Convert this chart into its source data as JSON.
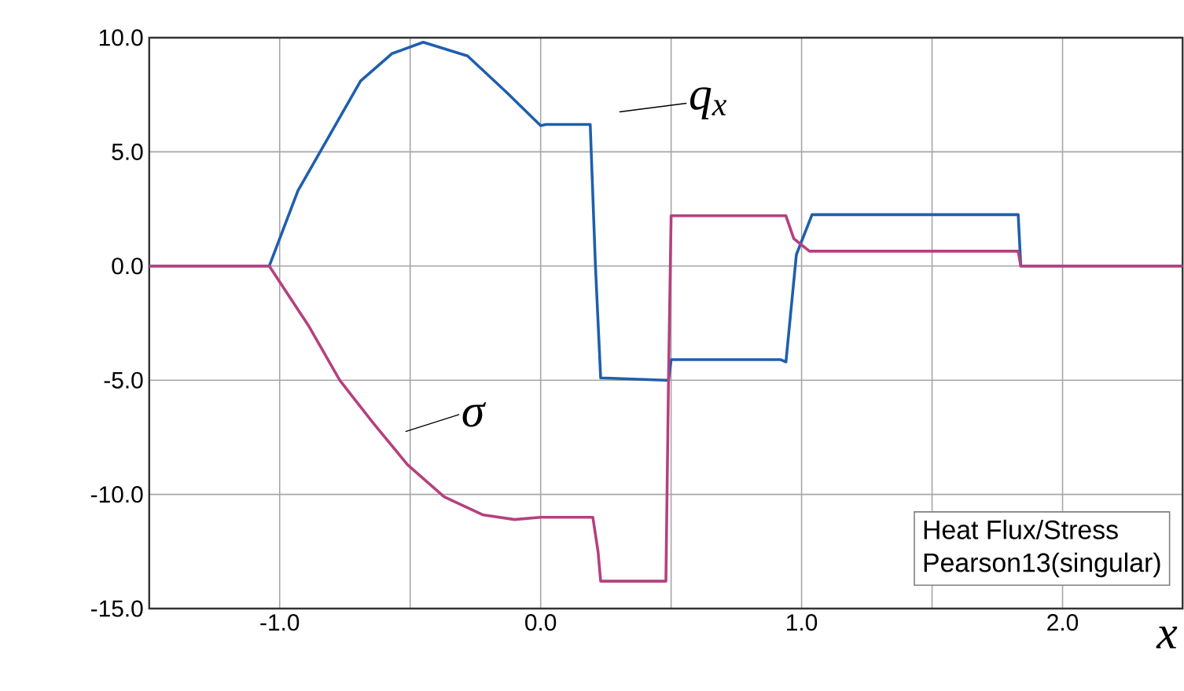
{
  "chart_data": {
    "type": "line",
    "xlabel": "x",
    "xlim": [
      -1.5,
      2.46
    ],
    "ylim": [
      -15,
      10
    ],
    "xticks": [
      {
        "value": -1.0,
        "label": "-1.0"
      },
      {
        "value": -0.5,
        "label": null
      },
      {
        "value": 0.0,
        "label": "0.0"
      },
      {
        "value": 0.5,
        "label": null
      },
      {
        "value": 1.0,
        "label": "1.0"
      },
      {
        "value": 1.5,
        "label": null
      },
      {
        "value": 2.0,
        "label": "2.0"
      }
    ],
    "yticks": [
      {
        "value": -15,
        "label": "-15.0"
      },
      {
        "value": -10,
        "label": "-10.0"
      },
      {
        "value": -5,
        "label": "-5.0"
      },
      {
        "value": 0,
        "label": "0.0"
      },
      {
        "value": 5,
        "label": "5.0"
      },
      {
        "value": 10,
        "label": "10.0"
      }
    ],
    "grid": true,
    "marker": "none",
    "line_style": "solid",
    "series": [
      {
        "color": "#1f5fad",
        "x": [
          -1.5,
          -1.04,
          -0.93,
          -0.83,
          -0.69,
          -0.57,
          -0.45,
          -0.28,
          -0.13,
          0.0,
          0.02,
          0.19,
          0.21,
          0.23,
          0.48,
          0.49,
          0.5,
          0.92,
          0.94,
          0.98,
          1.04,
          1.83,
          1.84,
          2.46
        ],
        "values": [
          0,
          0,
          3.3,
          5.3,
          8.1,
          9.3,
          9.8,
          9.2,
          7.6,
          6.15,
          6.2,
          6.2,
          0,
          -4.9,
          -5.0,
          -5.0,
          -4.1,
          -4.1,
          -4.2,
          0.5,
          2.25,
          2.25,
          0,
          0
        ]
      },
      {
        "color": "#b5407f",
        "x": [
          -1.5,
          -1.04,
          -0.89,
          -0.77,
          -0.64,
          -0.51,
          -0.37,
          -0.22,
          -0.1,
          0.0,
          0.2,
          0.22,
          0.23,
          0.48,
          0.49,
          0.5,
          0.94,
          0.97,
          1.03,
          1.83,
          1.84,
          2.46
        ],
        "values": [
          0,
          0,
          -2.6,
          -5.0,
          -6.9,
          -8.7,
          -10.1,
          -10.9,
          -11.1,
          -11.0,
          -11.0,
          -12.5,
          -13.8,
          -13.8,
          -5.0,
          2.2,
          2.2,
          1.2,
          0.65,
          0.65,
          0,
          0
        ]
      }
    ],
    "annotations": [
      "q$_{x}$",
      "σ",
      "Heat Flux/Stress",
      "Pearson13(singular)"
    ]
  }
}
